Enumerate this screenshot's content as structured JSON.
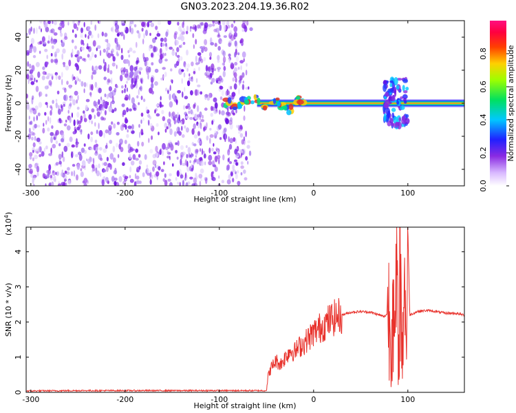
{
  "chart_data": [
    {
      "type": "heatmap",
      "title": "GN03.2023.204.19.36.R02",
      "xlabel": "Height of straight line (km)",
      "ylabel": "Frequency (Hz)",
      "xlim": [
        -305,
        160
      ],
      "ylim": [
        -50,
        50
      ],
      "x_ticks": [
        -300,
        -200,
        -100,
        0,
        100
      ],
      "y_ticks": [
        -40,
        -20,
        0,
        20,
        40
      ],
      "colorbar": {
        "label": "Normalized spectral amplitude",
        "range": [
          0,
          1
        ],
        "ticks": [
          0.0,
          0.2,
          0.4,
          0.6,
          0.8
        ],
        "colormap": "rainbow (violet-blue-cyan-green-yellow-red-magenta)"
      },
      "features": {
        "noise_region_x": [
          -305,
          -70
        ],
        "signal_band_center_hz": 0,
        "disturbance_x": [
          75,
          100
        ]
      },
      "colors": {
        "noise": "#8a2be2",
        "band_core": "#e0302a"
      }
    },
    {
      "type": "line",
      "xlabel": "Height of straight line (km)",
      "ylabel": "SNR (10 * v/v)",
      "y_multiplier": "(x10^4)",
      "xlim": [
        -305,
        160
      ],
      "ylim": [
        0,
        4.7
      ],
      "x_ticks": [
        -300,
        -200,
        -100,
        0,
        100
      ],
      "y_ticks": [
        0,
        1,
        2,
        3,
        4
      ],
      "series": [
        {
          "color": "#e8312b",
          "x": [
            -305,
            -250,
            -200,
            -150,
            -100,
            -50,
            -48,
            -45,
            -40,
            -35,
            -30,
            -25,
            -20,
            -15,
            -10,
            -5,
            0,
            10,
            20,
            30,
            40,
            50,
            60,
            70,
            75,
            80,
            82,
            84,
            86,
            88,
            90,
            92,
            94,
            96,
            98,
            100,
            102,
            110,
            120,
            130,
            140,
            150,
            160
          ],
          "values": [
            0.04,
            0.05,
            0.05,
            0.05,
            0.05,
            0.05,
            0.5,
            0.7,
            0.9,
            0.8,
            1.0,
            1.2,
            1.15,
            1.3,
            1.4,
            1.55,
            1.7,
            1.9,
            2.1,
            2.2,
            2.28,
            2.3,
            2.28,
            2.2,
            2.15,
            2.3,
            1.3,
            3.0,
            1.0,
            3.5,
            0.8,
            4.0,
            0.6,
            4.3,
            1.2,
            4.7,
            2.2,
            2.3,
            2.33,
            2.3,
            2.25,
            2.25,
            2.2
          ]
        }
      ]
    }
  ]
}
